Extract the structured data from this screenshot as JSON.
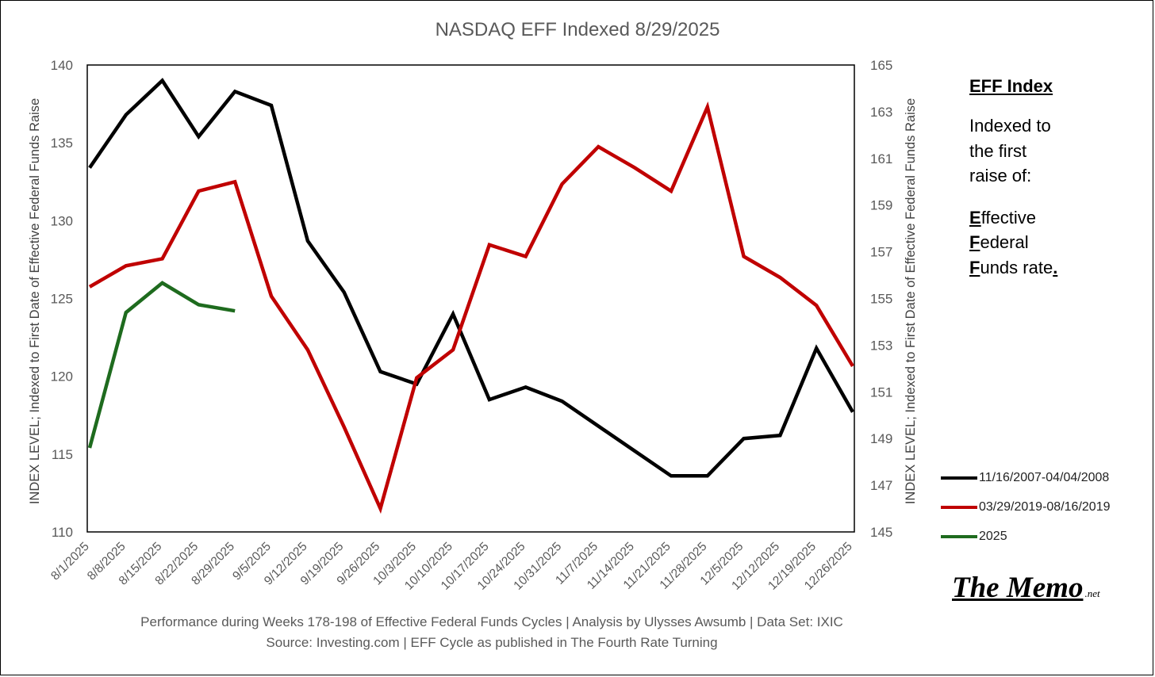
{
  "chart_data": {
    "type": "line",
    "title": "NASDAQ EFF Indexed 8/29/2025",
    "ylabel": "INDEX LEVEL; Indexed to First Date of Effective Federal Funds Raise",
    "y2label": "INDEX LEVEL; Indexed to First Date of Effective Federal Funds Raise",
    "ylim": [
      110,
      140
    ],
    "y2lim": [
      145,
      165
    ],
    "yticks": [
      "110",
      "115",
      "120",
      "125",
      "130",
      "135",
      "140"
    ],
    "y2ticks": [
      "145",
      "147",
      "149",
      "151",
      "153",
      "155",
      "157",
      "159",
      "161",
      "163",
      "165"
    ],
    "categories": [
      "8/1/2025",
      "8/8/2025",
      "8/15/2025",
      "8/22/2025",
      "8/29/2025",
      "9/5/2025",
      "9/12/2025",
      "9/19/2025",
      "9/26/2025",
      "10/3/2025",
      "10/10/2025",
      "10/17/2025",
      "10/24/2025",
      "10/31/2025",
      "11/7/2025",
      "11/14/2025",
      "11/21/2025",
      "11/28/2025",
      "12/5/2025",
      "12/12/2025",
      "12/19/2025",
      "12/26/2025"
    ],
    "series": [
      {
        "name": "11/16/2007-04/04/2008",
        "color": "#000000",
        "axis": "left",
        "values": [
          133.4,
          136.8,
          139.0,
          135.4,
          138.3,
          137.4,
          128.7,
          125.4,
          120.3,
          119.5,
          124.0,
          118.5,
          119.3,
          118.4,
          116.8,
          115.2,
          113.6,
          113.6,
          116.0,
          116.2,
          121.8,
          117.7
        ]
      },
      {
        "name": "03/29/2019-08/16/2019",
        "color": "#c00000",
        "axis": "right",
        "values": [
          155.5,
          156.4,
          156.7,
          159.6,
          160.0,
          155.1,
          152.8,
          149.5,
          146.0,
          151.6,
          152.8,
          157.3,
          156.8,
          159.9,
          161.5,
          160.6,
          159.6,
          163.2,
          156.8,
          155.9,
          154.7,
          152.1
        ]
      },
      {
        "name": "2025",
        "color": "#1e6b1e",
        "axis": "left",
        "values": [
          115.4,
          124.1,
          126.0,
          124.6,
          124.2,
          null,
          null,
          null,
          null,
          null,
          null,
          null,
          null,
          null,
          null,
          null,
          null,
          null,
          null,
          null,
          null,
          null
        ]
      }
    ]
  },
  "sidebar": {
    "heading": "EFF Index",
    "line1": "Indexed to",
    "line2": "the first",
    "line3": "raise of:",
    "e_first": "E",
    "e_rest": "ffective",
    "f_first": "F",
    "f_rest": "ederal",
    "f2_first": "F",
    "f2_rest": "unds rate",
    "period": "."
  },
  "logo": {
    "main": "The Memo",
    "suffix": ".net"
  },
  "footer": {
    "line1": "Performance during Weeks 178-198 of Effective Federal Funds Cycles  |  Analysis  by Ulysses Awsumb  |  Data Set: IXIC",
    "line2": "Source: Investing.com  |  EFF Cycle as published in The Fourth Rate Turning"
  }
}
